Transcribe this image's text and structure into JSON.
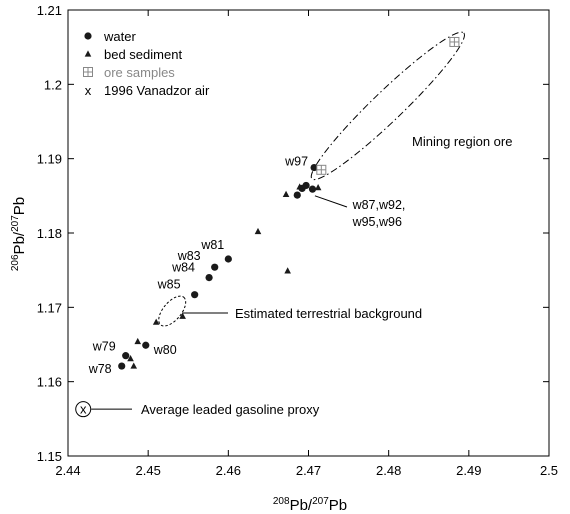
{
  "chart_data": {
    "type": "scatter",
    "title": "",
    "xlabel": {
      "sup1": "208",
      "base1": "Pb/",
      "sup2": "207",
      "base2": "Pb"
    },
    "ylabel": {
      "sup1": "206",
      "base1": "Pb/",
      "sup2": "207",
      "base2": "Pb"
    },
    "xlim": [
      2.44,
      2.5
    ],
    "ylim": [
      1.15,
      1.21
    ],
    "xticks": [
      "2.44",
      "2.45",
      "2.46",
      "2.47",
      "2.48",
      "2.49",
      "2.5"
    ],
    "yticks": [
      "1.15",
      "1.16",
      "1.17",
      "1.18",
      "1.19",
      "1.2",
      "1.21"
    ],
    "grid": false,
    "legend_position": "top-left",
    "series": [
      {
        "name": "water",
        "marker": "circle",
        "points": [
          {
            "x": 2.4707,
            "y": 1.1888,
            "label": "w97"
          },
          {
            "x": 2.4686,
            "y": 1.1851
          },
          {
            "x": 2.4692,
            "y": 1.186
          },
          {
            "x": 2.4697,
            "y": 1.1864
          },
          {
            "x": 2.4705,
            "y": 1.1859
          },
          {
            "x": 2.46,
            "y": 1.1765,
            "label": "w81"
          },
          {
            "x": 2.4583,
            "y": 1.1754,
            "label": "w83"
          },
          {
            "x": 2.4576,
            "y": 1.174,
            "label": "w84"
          },
          {
            "x": 2.4558,
            "y": 1.1717,
            "label": "w85"
          },
          {
            "x": 2.4497,
            "y": 1.1649,
            "label": "w80"
          },
          {
            "x": 2.4472,
            "y": 1.1635,
            "label": "w79"
          },
          {
            "x": 2.4467,
            "y": 1.1621,
            "label": "w78"
          }
        ]
      },
      {
        "name": "bed sediment",
        "marker": "triangle",
        "points": [
          {
            "x": 2.4672,
            "y": 1.1852
          },
          {
            "x": 2.4689,
            "y": 1.1862
          },
          {
            "x": 2.4712,
            "y": 1.1861
          },
          {
            "x": 2.4637,
            "y": 1.1802
          },
          {
            "x": 2.4674,
            "y": 1.1749
          },
          {
            "x": 2.4543,
            "y": 1.1688
          },
          {
            "x": 2.451,
            "y": 1.168
          },
          {
            "x": 2.4487,
            "y": 1.1654
          },
          {
            "x": 2.4478,
            "y": 1.1631
          },
          {
            "x": 2.4482,
            "y": 1.1621
          }
        ]
      },
      {
        "name": "ore samples",
        "marker": "boxplus",
        "points": [
          {
            "x": 2.4882,
            "y": 1.2057
          },
          {
            "x": 2.4716,
            "y": 1.1885
          }
        ]
      },
      {
        "name": "1996 Vanadzor air",
        "marker": "x",
        "points": [
          {
            "x": 2.4419,
            "y": 1.1563
          }
        ]
      }
    ],
    "group_label": "w87,w92,\nw95,w96",
    "annotations": [
      "Mining region ore",
      "Estimated terrestrial background",
      "Average leaded gasoline proxy"
    ],
    "colors": {
      "axis": "#000000",
      "marker": "#1a1a1a",
      "ore_marker": "#888888",
      "ore_legend_text": "#888888"
    }
  }
}
